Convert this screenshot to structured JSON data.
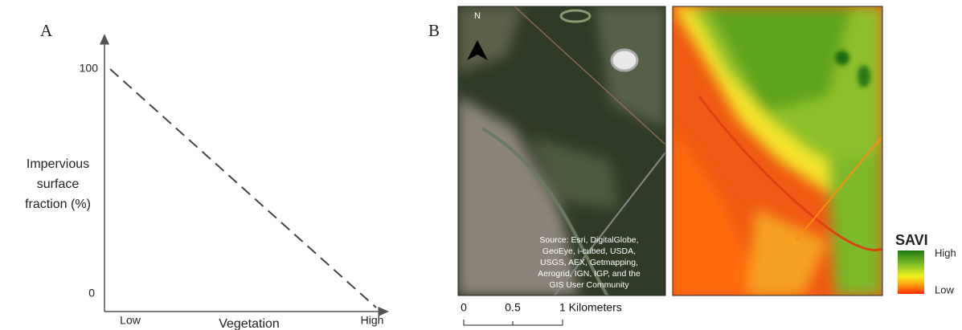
{
  "panel_a": {
    "label": "A",
    "y_axis_label": [
      "Impervious",
      "surface",
      "fraction (%)"
    ],
    "y_ticks": [
      "100",
      "0"
    ],
    "x_axis_label": "Vegetation",
    "x_ticks": [
      "Low",
      "High"
    ]
  },
  "panel_b": {
    "label": "B",
    "north": "N",
    "attribution": [
      "Source: Esri, DigitalGlobe,",
      "GeoEye, i-cubed, USDA,",
      "USGS, AEX, Getmapping,",
      "Aerogrid, IGN, IGP, and the",
      "GIS User Community"
    ],
    "scale_bar": [
      "0",
      "0.5",
      "1 Kilometers"
    ],
    "legend": {
      "title": "SAVI",
      "high": "High",
      "low": "Low"
    }
  }
}
